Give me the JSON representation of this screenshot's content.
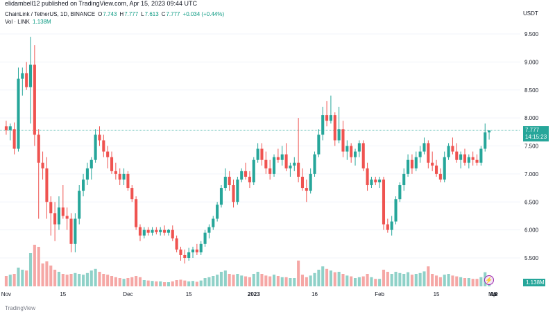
{
  "header": {
    "published": "elidambell12 published on TradingView.com, Apr 15, 2023 09:44 UTC"
  },
  "legend": {
    "symbol": "ChainLink / TetherUS, 1D, BINANCE",
    "o_label": "O",
    "o_value": "7.743",
    "h_label": "H",
    "h_value": "7.777",
    "l_label": "L",
    "l_value": "7.613",
    "c_label": "C",
    "c_value": "7.777",
    "change": "+0.034 (+0.44%)",
    "vol_label": "Vol · LINK",
    "vol_value": "1.138M"
  },
  "axis": {
    "currency": "USDT",
    "price_badge": "7.777",
    "countdown": "14:15:23",
    "vol_badge": "1.138M"
  },
  "footer": {
    "brand": "TradingView"
  },
  "colors": {
    "up": "#26a69a",
    "down": "#ef5350",
    "up_vol": "#8fd1c8",
    "down_vol": "#f5a7a5",
    "grid": "#f0f3fa",
    "priceline": "#26a69a"
  },
  "chart_data": {
    "type": "candlestick",
    "title": "ChainLink / TetherUS, 1D, BINANCE",
    "ylim": [
      5.25,
      9.75
    ],
    "y_ticks": [
      "9.500",
      "9.000",
      "8.500",
      "8.000",
      "7.500",
      "7.000",
      "6.500",
      "6.000",
      "5.500"
    ],
    "x_ticks": [
      "Nov",
      "15",
      "Dec",
      "15",
      "2023",
      "16",
      "Feb",
      "15",
      "Mar",
      "15",
      "Apr",
      "17"
    ],
    "last_price": 7.777,
    "volume_label": "Vol · LINK",
    "last_volume": "1.138M",
    "candles": [
      {
        "o": 7.85,
        "h": 7.95,
        "l": 7.7,
        "c": 7.78,
        "v": 0.25
      },
      {
        "o": 7.78,
        "h": 7.9,
        "l": 7.6,
        "c": 7.85,
        "v": 0.28
      },
      {
        "o": 7.8,
        "h": 7.92,
        "l": 7.35,
        "c": 7.45,
        "v": 0.3
      },
      {
        "o": 7.45,
        "h": 8.9,
        "l": 7.4,
        "c": 8.7,
        "v": 0.45
      },
      {
        "o": 8.7,
        "h": 8.9,
        "l": 8.4,
        "c": 8.8,
        "v": 0.4
      },
      {
        "o": 8.8,
        "h": 9.0,
        "l": 8.5,
        "c": 8.55,
        "v": 0.38
      },
      {
        "o": 8.55,
        "h": 9.45,
        "l": 7.9,
        "c": 8.95,
        "v": 0.8
      },
      {
        "o": 8.95,
        "h": 9.3,
        "l": 7.5,
        "c": 7.7,
        "v": 1.0
      },
      {
        "o": 7.7,
        "h": 7.8,
        "l": 6.2,
        "c": 7.2,
        "v": 0.95
      },
      {
        "o": 7.2,
        "h": 7.4,
        "l": 6.9,
        "c": 7.1,
        "v": 0.55
      },
      {
        "o": 7.1,
        "h": 7.3,
        "l": 6.2,
        "c": 6.5,
        "v": 0.6
      },
      {
        "o": 6.5,
        "h": 6.6,
        "l": 5.9,
        "c": 6.3,
        "v": 0.5
      },
      {
        "o": 6.3,
        "h": 6.5,
        "l": 5.8,
        "c": 6.1,
        "v": 0.4
      },
      {
        "o": 6.1,
        "h": 6.6,
        "l": 6.0,
        "c": 6.4,
        "v": 0.35
      },
      {
        "o": 6.4,
        "h": 6.8,
        "l": 6.2,
        "c": 6.25,
        "v": 0.3
      },
      {
        "o": 6.25,
        "h": 6.4,
        "l": 6.0,
        "c": 6.2,
        "v": 0.28
      },
      {
        "o": 6.2,
        "h": 6.3,
        "l": 5.6,
        "c": 5.75,
        "v": 0.3
      },
      {
        "o": 5.75,
        "h": 6.3,
        "l": 5.6,
        "c": 6.2,
        "v": 0.32
      },
      {
        "o": 6.2,
        "h": 6.8,
        "l": 6.1,
        "c": 6.7,
        "v": 0.3
      },
      {
        "o": 6.7,
        "h": 7.0,
        "l": 6.6,
        "c": 6.9,
        "v": 0.28
      },
      {
        "o": 6.9,
        "h": 7.2,
        "l": 6.8,
        "c": 7.1,
        "v": 0.32
      },
      {
        "o": 7.1,
        "h": 7.3,
        "l": 6.9,
        "c": 7.25,
        "v": 0.38
      },
      {
        "o": 7.25,
        "h": 7.8,
        "l": 7.2,
        "c": 7.7,
        "v": 0.42
      },
      {
        "o": 7.7,
        "h": 7.85,
        "l": 7.5,
        "c": 7.6,
        "v": 0.35
      },
      {
        "o": 7.6,
        "h": 7.7,
        "l": 7.3,
        "c": 7.4,
        "v": 0.3
      },
      {
        "o": 7.4,
        "h": 7.5,
        "l": 7.1,
        "c": 7.3,
        "v": 0.28
      },
      {
        "o": 7.3,
        "h": 7.4,
        "l": 7.0,
        "c": 7.05,
        "v": 0.25
      },
      {
        "o": 7.05,
        "h": 7.2,
        "l": 6.9,
        "c": 7.0,
        "v": 0.22
      },
      {
        "o": 7.0,
        "h": 7.1,
        "l": 6.8,
        "c": 6.9,
        "v": 0.2
      },
      {
        "o": 6.9,
        "h": 7.1,
        "l": 6.8,
        "c": 7.0,
        "v": 0.18
      },
      {
        "o": 7.0,
        "h": 7.05,
        "l": 6.7,
        "c": 6.75,
        "v": 0.2
      },
      {
        "o": 6.75,
        "h": 6.8,
        "l": 6.5,
        "c": 6.55,
        "v": 0.22
      },
      {
        "o": 6.55,
        "h": 6.6,
        "l": 6.0,
        "c": 6.05,
        "v": 0.25
      },
      {
        "o": 6.05,
        "h": 6.1,
        "l": 5.8,
        "c": 5.9,
        "v": 0.22
      },
      {
        "o": 5.9,
        "h": 6.05,
        "l": 5.85,
        "c": 6.0,
        "v": 0.15
      },
      {
        "o": 6.0,
        "h": 6.05,
        "l": 5.9,
        "c": 5.95,
        "v": 0.14
      },
      {
        "o": 5.95,
        "h": 6.05,
        "l": 5.9,
        "c": 6.0,
        "v": 0.13
      },
      {
        "o": 6.0,
        "h": 6.05,
        "l": 5.92,
        "c": 5.96,
        "v": 0.12
      },
      {
        "o": 5.96,
        "h": 6.05,
        "l": 5.9,
        "c": 6.0,
        "v": 0.12
      },
      {
        "o": 6.0,
        "h": 6.08,
        "l": 5.9,
        "c": 5.95,
        "v": 0.1
      },
      {
        "o": 5.95,
        "h": 6.02,
        "l": 5.9,
        "c": 6.0,
        "v": 0.1
      },
      {
        "o": 6.0,
        "h": 6.08,
        "l": 5.8,
        "c": 5.85,
        "v": 0.12
      },
      {
        "o": 5.85,
        "h": 5.9,
        "l": 5.6,
        "c": 5.65,
        "v": 0.15
      },
      {
        "o": 5.65,
        "h": 5.7,
        "l": 5.45,
        "c": 5.55,
        "v": 0.16
      },
      {
        "o": 5.55,
        "h": 5.65,
        "l": 5.4,
        "c": 5.5,
        "v": 0.14
      },
      {
        "o": 5.5,
        "h": 5.68,
        "l": 5.45,
        "c": 5.6,
        "v": 0.12
      },
      {
        "o": 5.6,
        "h": 5.7,
        "l": 5.5,
        "c": 5.65,
        "v": 0.13
      },
      {
        "o": 5.65,
        "h": 5.75,
        "l": 5.55,
        "c": 5.6,
        "v": 0.11
      },
      {
        "o": 5.6,
        "h": 5.8,
        "l": 5.55,
        "c": 5.75,
        "v": 0.14
      },
      {
        "o": 5.75,
        "h": 6.0,
        "l": 5.7,
        "c": 5.95,
        "v": 0.2
      },
      {
        "o": 5.95,
        "h": 6.1,
        "l": 5.85,
        "c": 6.05,
        "v": 0.22
      },
      {
        "o": 6.05,
        "h": 6.25,
        "l": 6.0,
        "c": 6.2,
        "v": 0.25
      },
      {
        "o": 6.2,
        "h": 6.5,
        "l": 6.15,
        "c": 6.45,
        "v": 0.28
      },
      {
        "o": 6.45,
        "h": 6.8,
        "l": 6.4,
        "c": 6.75,
        "v": 0.35
      },
      {
        "o": 6.75,
        "h": 7.1,
        "l": 6.7,
        "c": 6.95,
        "v": 0.38
      },
      {
        "o": 6.95,
        "h": 7.05,
        "l": 6.7,
        "c": 6.8,
        "v": 0.3
      },
      {
        "o": 6.8,
        "h": 6.9,
        "l": 6.4,
        "c": 6.5,
        "v": 0.28
      },
      {
        "o": 6.5,
        "h": 6.95,
        "l": 6.45,
        "c": 6.9,
        "v": 0.3
      },
      {
        "o": 6.9,
        "h": 7.1,
        "l": 6.85,
        "c": 7.05,
        "v": 0.26
      },
      {
        "o": 7.05,
        "h": 7.2,
        "l": 6.9,
        "c": 6.95,
        "v": 0.24
      },
      {
        "o": 6.95,
        "h": 7.05,
        "l": 6.75,
        "c": 6.85,
        "v": 0.22
      },
      {
        "o": 6.85,
        "h": 7.3,
        "l": 6.8,
        "c": 7.25,
        "v": 0.3
      },
      {
        "o": 7.25,
        "h": 7.55,
        "l": 7.2,
        "c": 7.45,
        "v": 0.35
      },
      {
        "o": 7.45,
        "h": 7.55,
        "l": 7.15,
        "c": 7.25,
        "v": 0.3
      },
      {
        "o": 7.25,
        "h": 7.4,
        "l": 7.0,
        "c": 7.1,
        "v": 0.26
      },
      {
        "o": 7.1,
        "h": 7.25,
        "l": 6.9,
        "c": 7.0,
        "v": 0.24
      },
      {
        "o": 7.0,
        "h": 7.35,
        "l": 6.95,
        "c": 7.3,
        "v": 0.28
      },
      {
        "o": 7.3,
        "h": 7.45,
        "l": 7.2,
        "c": 7.25,
        "v": 0.25
      },
      {
        "o": 7.25,
        "h": 7.5,
        "l": 7.15,
        "c": 7.35,
        "v": 0.22
      },
      {
        "o": 7.35,
        "h": 7.55,
        "l": 7.05,
        "c": 7.1,
        "v": 0.22
      },
      {
        "o": 7.1,
        "h": 7.2,
        "l": 6.95,
        "c": 7.15,
        "v": 0.2
      },
      {
        "o": 7.15,
        "h": 7.3,
        "l": 7.05,
        "c": 7.2,
        "v": 0.2
      },
      {
        "o": 7.2,
        "h": 8.0,
        "l": 6.85,
        "c": 6.95,
        "v": 0.62
      },
      {
        "o": 6.95,
        "h": 7.1,
        "l": 6.7,
        "c": 6.75,
        "v": 0.28
      },
      {
        "o": 6.75,
        "h": 6.9,
        "l": 6.5,
        "c": 6.7,
        "v": 0.22
      },
      {
        "o": 6.7,
        "h": 7.1,
        "l": 6.65,
        "c": 7.0,
        "v": 0.26
      },
      {
        "o": 7.0,
        "h": 7.4,
        "l": 6.95,
        "c": 7.35,
        "v": 0.32
      },
      {
        "o": 7.35,
        "h": 7.8,
        "l": 7.3,
        "c": 7.7,
        "v": 0.4
      },
      {
        "o": 7.7,
        "h": 8.2,
        "l": 7.6,
        "c": 8.05,
        "v": 0.48
      },
      {
        "o": 8.05,
        "h": 8.3,
        "l": 7.85,
        "c": 7.95,
        "v": 0.42
      },
      {
        "o": 7.95,
        "h": 8.4,
        "l": 7.9,
        "c": 8.05,
        "v": 0.38
      },
      {
        "o": 8.05,
        "h": 8.1,
        "l": 7.5,
        "c": 7.6,
        "v": 0.34
      },
      {
        "o": 7.6,
        "h": 8.2,
        "l": 7.55,
        "c": 7.8,
        "v": 0.35
      },
      {
        "o": 7.8,
        "h": 7.95,
        "l": 7.3,
        "c": 7.4,
        "v": 0.3
      },
      {
        "o": 7.4,
        "h": 7.6,
        "l": 7.25,
        "c": 7.5,
        "v": 0.26
      },
      {
        "o": 7.5,
        "h": 7.55,
        "l": 7.2,
        "c": 7.3,
        "v": 0.24
      },
      {
        "o": 7.3,
        "h": 7.45,
        "l": 7.15,
        "c": 7.4,
        "v": 0.2
      },
      {
        "o": 7.4,
        "h": 7.6,
        "l": 7.3,
        "c": 7.55,
        "v": 0.22
      },
      {
        "o": 7.55,
        "h": 7.6,
        "l": 7.05,
        "c": 7.1,
        "v": 0.24
      },
      {
        "o": 7.1,
        "h": 7.2,
        "l": 6.7,
        "c": 6.8,
        "v": 0.3
      },
      {
        "o": 6.8,
        "h": 6.95,
        "l": 6.75,
        "c": 6.9,
        "v": 0.22
      },
      {
        "o": 6.9,
        "h": 6.95,
        "l": 6.8,
        "c": 6.85,
        "v": 0.18
      },
      {
        "o": 6.85,
        "h": 6.95,
        "l": 6.75,
        "c": 6.9,
        "v": 0.18
      },
      {
        "o": 6.9,
        "h": 6.95,
        "l": 6.0,
        "c": 6.1,
        "v": 0.4
      },
      {
        "o": 6.1,
        "h": 6.2,
        "l": 5.95,
        "c": 6.0,
        "v": 0.35
      },
      {
        "o": 6.0,
        "h": 6.25,
        "l": 5.9,
        "c": 6.15,
        "v": 0.3
      },
      {
        "o": 6.15,
        "h": 6.6,
        "l": 6.1,
        "c": 6.55,
        "v": 0.35
      },
      {
        "o": 6.55,
        "h": 6.85,
        "l": 6.5,
        "c": 6.8,
        "v": 0.32
      },
      {
        "o": 6.8,
        "h": 7.1,
        "l": 6.7,
        "c": 7.0,
        "v": 0.3
      },
      {
        "o": 7.0,
        "h": 7.35,
        "l": 6.95,
        "c": 7.25,
        "v": 0.34
      },
      {
        "o": 7.25,
        "h": 7.35,
        "l": 7.0,
        "c": 7.1,
        "v": 0.28
      },
      {
        "o": 7.1,
        "h": 7.4,
        "l": 7.05,
        "c": 7.3,
        "v": 0.3
      },
      {
        "o": 7.3,
        "h": 7.5,
        "l": 7.2,
        "c": 7.4,
        "v": 0.32
      },
      {
        "o": 7.4,
        "h": 7.65,
        "l": 7.35,
        "c": 7.55,
        "v": 0.36
      },
      {
        "o": 7.55,
        "h": 7.6,
        "l": 7.1,
        "c": 7.2,
        "v": 0.48
      },
      {
        "o": 7.2,
        "h": 7.4,
        "l": 7.05,
        "c": 7.15,
        "v": 0.3
      },
      {
        "o": 7.15,
        "h": 7.25,
        "l": 6.95,
        "c": 7.0,
        "v": 0.26
      },
      {
        "o": 7.0,
        "h": 7.1,
        "l": 6.85,
        "c": 6.9,
        "v": 0.22
      },
      {
        "o": 6.9,
        "h": 7.4,
        "l": 6.85,
        "c": 7.3,
        "v": 0.28
      },
      {
        "o": 7.3,
        "h": 7.55,
        "l": 7.25,
        "c": 7.5,
        "v": 0.3
      },
      {
        "o": 7.5,
        "h": 7.65,
        "l": 7.35,
        "c": 7.4,
        "v": 0.26
      },
      {
        "o": 7.4,
        "h": 7.55,
        "l": 7.2,
        "c": 7.25,
        "v": 0.24
      },
      {
        "o": 7.25,
        "h": 7.4,
        "l": 7.1,
        "c": 7.35,
        "v": 0.22
      },
      {
        "o": 7.35,
        "h": 7.45,
        "l": 7.15,
        "c": 7.2,
        "v": 0.2
      },
      {
        "o": 7.2,
        "h": 7.35,
        "l": 7.1,
        "c": 7.3,
        "v": 0.2
      },
      {
        "o": 7.3,
        "h": 7.4,
        "l": 7.15,
        "c": 7.25,
        "v": 0.18
      },
      {
        "o": 7.25,
        "h": 7.35,
        "l": 7.15,
        "c": 7.2,
        "v": 0.18
      },
      {
        "o": 7.2,
        "h": 7.5,
        "l": 7.15,
        "c": 7.45,
        "v": 0.22
      },
      {
        "o": 7.45,
        "h": 7.9,
        "l": 7.4,
        "c": 7.743,
        "v": 0.34
      },
      {
        "o": 7.743,
        "h": 7.777,
        "l": 7.613,
        "c": 7.777,
        "v": 0.12
      }
    ]
  }
}
